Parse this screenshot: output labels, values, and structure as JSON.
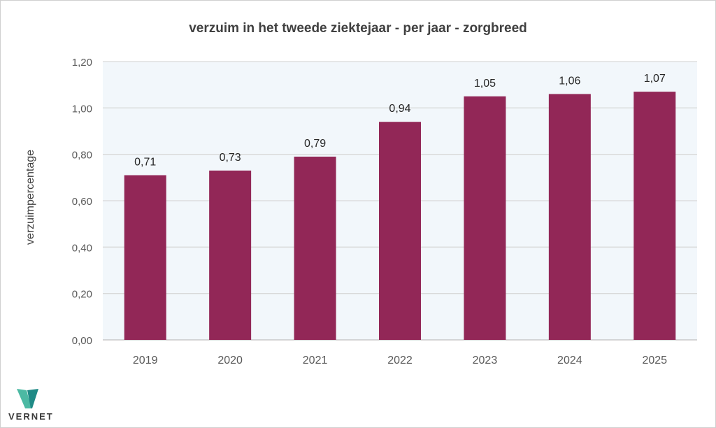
{
  "chart_data": {
    "type": "bar",
    "title": "verzuim in het tweede ziektejaar - per jaar - zorgbreed",
    "xlabel": "",
    "ylabel": "verzuimpercentage",
    "categories": [
      "2019",
      "2020",
      "2021",
      "2022",
      "2023",
      "2024",
      "2025"
    ],
    "values": [
      0.71,
      0.73,
      0.79,
      0.94,
      1.05,
      1.06,
      1.07
    ],
    "data_labels": [
      "0,71",
      "0,73",
      "0,79",
      "0,94",
      "1,05",
      "1,06",
      "1,07"
    ],
    "ylim": [
      0,
      1.2
    ],
    "yticks": [
      0,
      0.2,
      0.4,
      0.6,
      0.8,
      1.0,
      1.2
    ],
    "ytick_labels": [
      "0,00",
      "0,20",
      "0,40",
      "0,60",
      "0,80",
      "1,00",
      "1,20"
    ],
    "grid": true,
    "bar_color": "#922757",
    "plot_background": "#f2f7fb"
  },
  "logo": {
    "text": "VERNET"
  }
}
